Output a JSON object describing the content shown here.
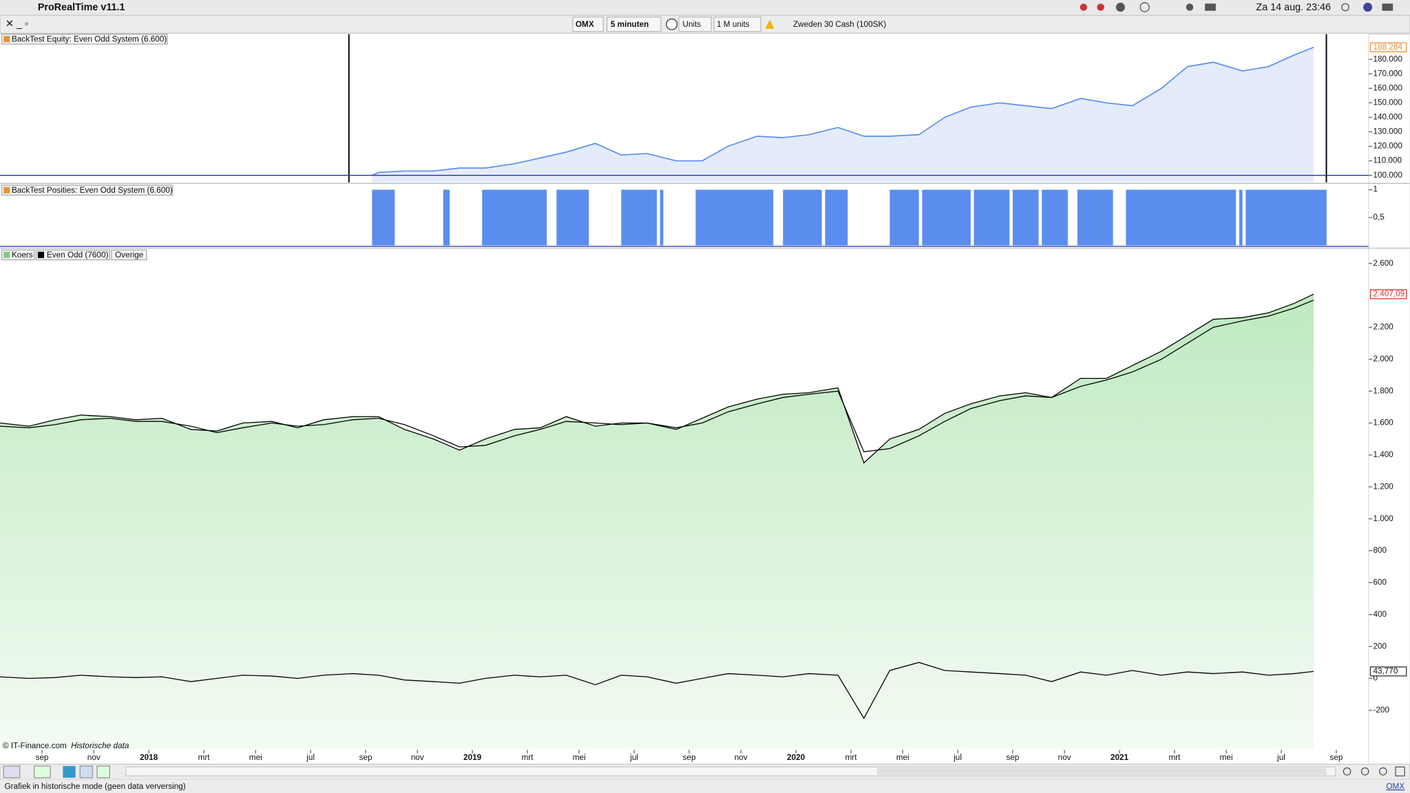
{
  "menubar": {
    "app": "ProRealTime v11.1",
    "clock": "Za 14 aug.  23:46"
  },
  "toolbar": {
    "instrument": "OMX",
    "interval": "5 minuten",
    "units": "Units",
    "size": "1 M units",
    "market": "Zweden 30 Cash (100SK)"
  },
  "x_axis": {
    "xlim": [
      2017.54,
      2021.77
    ],
    "xticks": [
      {
        "value": 2017.67,
        "label": "sep"
      },
      {
        "value": 2017.83,
        "label": "nov"
      },
      {
        "value": 2018,
        "label": "2018"
      },
      {
        "value": 2018.17,
        "label": "mrt"
      },
      {
        "value": 2018.33,
        "label": "mei"
      },
      {
        "value": 2018.5,
        "label": "jul"
      },
      {
        "value": 2018.67,
        "label": "sep"
      },
      {
        "value": 2018.83,
        "label": "nov"
      },
      {
        "value": 2019,
        "label": "2019"
      },
      {
        "value": 2019.17,
        "label": "mrt"
      },
      {
        "value": 2019.33,
        "label": "mei"
      },
      {
        "value": 2019.5,
        "label": "jul"
      },
      {
        "value": 2019.67,
        "label": "sep"
      },
      {
        "value": 2019.83,
        "label": "nov"
      },
      {
        "value": 2020,
        "label": "2020"
      },
      {
        "value": 2020.17,
        "label": "mrt"
      },
      {
        "value": 2020.33,
        "label": "mei"
      },
      {
        "value": 2020.5,
        "label": "jul"
      },
      {
        "value": 2020.67,
        "label": "sep"
      },
      {
        "value": 2020.83,
        "label": "nov"
      },
      {
        "value": 2021,
        "label": "2021"
      },
      {
        "value": 2021.17,
        "label": "mrt"
      },
      {
        "value": 2021.33,
        "label": "mei"
      },
      {
        "value": 2021.5,
        "label": "jul"
      },
      {
        "value": 2021.67,
        "label": "sep"
      }
    ]
  },
  "panels": {
    "equity": {
      "type": "line",
      "label": "BackTest Equity: Even Odd System (6.600)",
      "color": "#5b8def",
      "x": [
        2018.69,
        2018.71,
        2018.79,
        2018.88,
        2018.96,
        2019.04,
        2019.13,
        2019.21,
        2019.29,
        2019.38,
        2019.46,
        2019.54,
        2019.63,
        2019.71,
        2019.79,
        2019.88,
        2019.96,
        2020.04,
        2020.13,
        2020.21,
        2020.29,
        2020.38,
        2020.46,
        2020.54,
        2020.63,
        2020.71,
        2020.79,
        2020.88,
        2020.96,
        2021.04,
        2021.13,
        2021.21,
        2021.29,
        2021.38,
        2021.46,
        2021.54,
        2021.6
      ],
      "values": [
        100000,
        102000,
        103000,
        103000,
        105000,
        105000,
        108000,
        112000,
        116000,
        122000,
        114000,
        115000,
        110000,
        110000,
        120000,
        127000,
        126000,
        128000,
        133000,
        127000,
        127000,
        128000,
        140000,
        147000,
        150000,
        148000,
        146000,
        153000,
        150000,
        148000,
        160000,
        175000,
        178000,
        172000,
        175000,
        183000,
        188284
      ],
      "ylim": [
        95040,
        197360
      ],
      "yticks": [
        {
          "value": 100000,
          "label": "100.000"
        },
        {
          "value": 110000,
          "label": "110.000"
        },
        {
          "value": 120000,
          "label": "120.000"
        },
        {
          "value": 130000,
          "label": "130.000"
        },
        {
          "value": 140000,
          "label": "140.000"
        },
        {
          "value": 150000,
          "label": "150.000"
        },
        {
          "value": 160000,
          "label": "160.000"
        },
        {
          "value": 170000,
          "label": "170.000"
        },
        {
          "value": 180000,
          "label": "180.000"
        }
      ],
      "last_label": "188.284"
    },
    "positions": {
      "type": "bar",
      "label": "BackTest Posities: Even Odd System (6.600)",
      "color": "#5b8def",
      "value": 1,
      "intervals": [
        [
          2018.69,
          2018.76
        ],
        [
          2018.91,
          2018.93
        ],
        [
          2019.03,
          2019.23
        ],
        [
          2019.26,
          2019.36
        ],
        [
          2019.46,
          2019.57
        ],
        [
          2019.58,
          2019.59
        ],
        [
          2019.69,
          2019.93
        ],
        [
          2019.96,
          2020.08
        ],
        [
          2020.09,
          2020.16
        ],
        [
          2020.29,
          2020.38
        ],
        [
          2020.39,
          2020.54
        ],
        [
          2020.55,
          2020.66
        ],
        [
          2020.67,
          2020.75
        ],
        [
          2020.76,
          2020.84
        ],
        [
          2020.87,
          2020.98
        ],
        [
          2021.02,
          2021.36
        ],
        [
          2021.37,
          2021.38
        ],
        [
          2021.39,
          2021.64
        ]
      ],
      "ylim": [
        -0.032,
        1.097
      ],
      "yticks": [
        {
          "value": 1,
          "label": "1"
        },
        {
          "value": 0.5,
          "label": "0,5"
        }
      ]
    },
    "price": {
      "type": "area",
      "legend_extra": "Overige",
      "x": [
        2017.54,
        2017.63,
        2017.71,
        2017.79,
        2017.88,
        2017.96,
        2018.04,
        2018.13,
        2018.21,
        2018.29,
        2018.38,
        2018.46,
        2018.54,
        2018.63,
        2018.71,
        2018.79,
        2018.88,
        2018.96,
        2019.04,
        2019.13,
        2019.21,
        2019.29,
        2019.38,
        2019.46,
        2019.54,
        2019.63,
        2019.71,
        2019.79,
        2019.88,
        2019.96,
        2020.04,
        2020.13,
        2020.21,
        2020.29,
        2020.38,
        2020.46,
        2020.54,
        2020.63,
        2020.71,
        2020.79,
        2020.88,
        2020.96,
        2021.04,
        2021.13,
        2021.21,
        2021.29,
        2021.38,
        2021.46,
        2021.54,
        2021.6
      ],
      "series": [
        {
          "name": "Koers",
          "color": "#7fcf86",
          "values": [
            1600,
            1580,
            1620,
            1650,
            1640,
            1620,
            1630,
            1560,
            1550,
            1600,
            1610,
            1570,
            1620,
            1640,
            1640,
            1560,
            1500,
            1430,
            1500,
            1560,
            1570,
            1640,
            1580,
            1600,
            1600,
            1560,
            1630,
            1700,
            1750,
            1780,
            1790,
            1820,
            1350,
            1500,
            1560,
            1660,
            1720,
            1770,
            1790,
            1760,
            1880,
            1880,
            1960,
            2050,
            2150,
            2250,
            2260,
            2290,
            2350,
            2407.09
          ]
        },
        {
          "name": "Even Odd (7600)",
          "color": "#000000",
          "values": [
            1580,
            1570,
            1590,
            1620,
            1630,
            1610,
            1610,
            1580,
            1540,
            1570,
            1600,
            1580,
            1590,
            1620,
            1630,
            1590,
            1520,
            1450,
            1460,
            1520,
            1560,
            1610,
            1600,
            1590,
            1600,
            1570,
            1600,
            1670,
            1720,
            1760,
            1780,
            1800,
            1420,
            1440,
            1520,
            1610,
            1690,
            1740,
            1770,
            1760,
            1830,
            1870,
            1920,
            2000,
            2100,
            2200,
            2240,
            2270,
            2320,
            2370
          ]
        },
        {
          "color": "#000000",
          "values": [
            10,
            0,
            5,
            20,
            10,
            5,
            10,
            -20,
            0,
            20,
            15,
            0,
            20,
            30,
            20,
            -10,
            -20,
            -30,
            0,
            20,
            10,
            20,
            -40,
            20,
            10,
            -30,
            0,
            30,
            20,
            10,
            30,
            20,
            -250,
            50,
            100,
            50,
            40,
            30,
            20,
            -20,
            40,
            20,
            50,
            20,
            40,
            30,
            40,
            20,
            30,
            43.77
          ]
        }
      ],
      "ylim": [
        -442,
        2690
      ],
      "yticks": [
        {
          "value": 2600,
          "label": "2.600"
        },
        {
          "value": 2200,
          "label": "2.200"
        },
        {
          "value": 2000,
          "label": "2.000"
        },
        {
          "value": 1800,
          "label": "1.800"
        },
        {
          "value": 1600,
          "label": "1.600"
        },
        {
          "value": 1400,
          "label": "1.400"
        },
        {
          "value": 1200,
          "label": "1.200"
        },
        {
          "value": 1000,
          "label": "1.000"
        },
        800,
        600,
        400,
        200,
        0,
        -200
      ],
      "last_labels": [
        "2.407,09",
        "43,770"
      ]
    }
  },
  "footer": {
    "copyright": "© IT-Finance.com",
    "mode": "Historische data",
    "status": "Grafiek in historische mode (geen data verversing)",
    "instrument": "OMX"
  }
}
